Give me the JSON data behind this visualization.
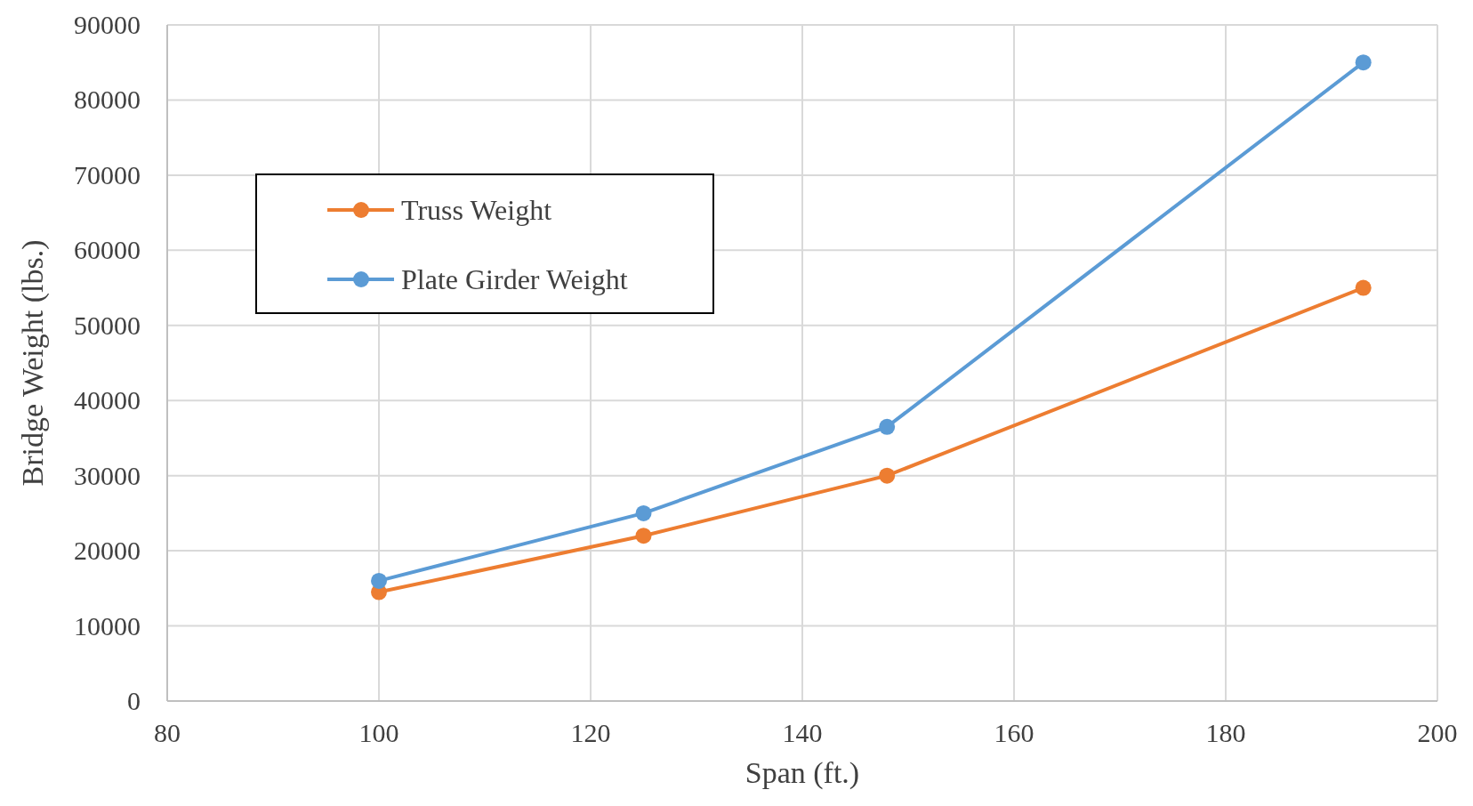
{
  "chart_data": {
    "type": "line",
    "xlabel": "Span (ft.)",
    "ylabel": "Bridge Weight (lbs.)",
    "x": [
      100,
      125,
      148,
      193
    ],
    "series": [
      {
        "name": "Truss Weight",
        "color": "#ed7d31",
        "values": [
          14500,
          22000,
          30000,
          55000
        ]
      },
      {
        "name": "Plate Girder Weight",
        "color": "#5b9bd5",
        "values": [
          16000,
          25000,
          36500,
          85000
        ]
      }
    ],
    "xlim": [
      80,
      200
    ],
    "xticks": [
      80,
      100,
      120,
      140,
      160,
      180,
      200
    ],
    "ylim": [
      0,
      90000
    ],
    "yticks": [
      0,
      10000,
      20000,
      30000,
      40000,
      50000,
      60000,
      70000,
      80000,
      90000
    ],
    "grid": true,
    "legend": "top left",
    "marker": "circle",
    "line_style": "solid"
  }
}
